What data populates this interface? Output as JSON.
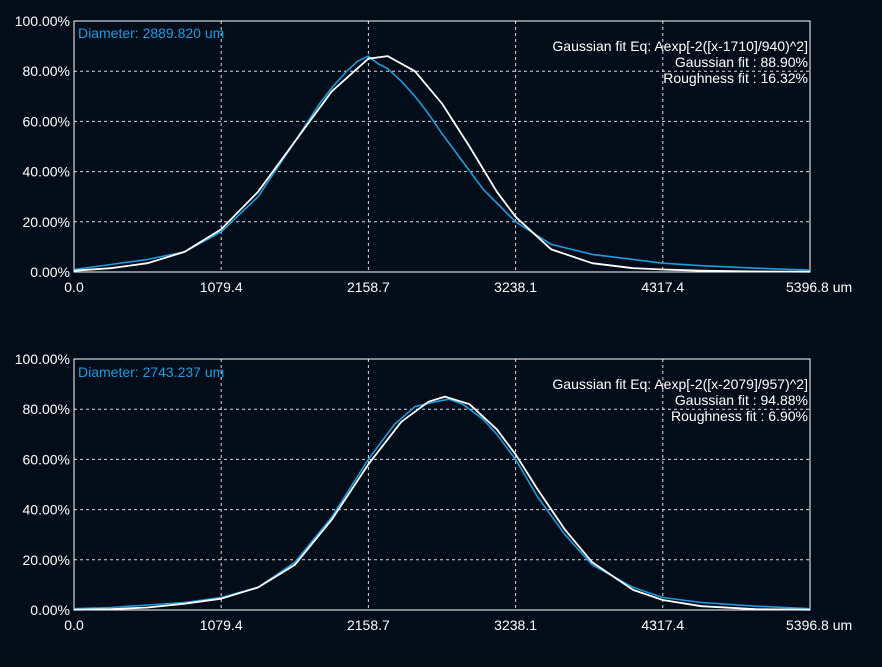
{
  "colors": {
    "background": "#030d1a",
    "plot_border": "#ffffff",
    "grid": "#ffffff",
    "measured": "#1b9be0",
    "fit": "#ffffff"
  },
  "chart_data": [
    {
      "type": "line",
      "diameter_label": "Diameter: 2889.820 um",
      "fit_equation": "Gaussian fit Eq: Aexp[-2([x-1710]/940)^2]",
      "gaussian_fit": "Gaussian fit : 88.90%",
      "roughness_fit": "Roughness fit : 16.32%",
      "x_ticks": [
        "0.0",
        "1079.4",
        "2158.7",
        "3238.1",
        "4317.4",
        "5396.8 um"
      ],
      "y_ticks": [
        "0.00%",
        "20.00%",
        "40.00%",
        "60.00%",
        "80.00%",
        "100.00%"
      ],
      "xlim": [
        0,
        5396.8
      ],
      "ylim": [
        0,
        100
      ],
      "grid": true,
      "series": [
        {
          "x": [
            0,
            270,
            540,
            810,
            1079,
            1350,
            1620,
            1800,
            1900,
            2000,
            2080,
            2158,
            2230,
            2300,
            2400,
            2500,
            2600,
            2700,
            2850,
            3000,
            3238,
            3500,
            3800,
            4100,
            4317,
            4600,
            5000,
            5397
          ],
          "y": [
            1,
            3,
            5,
            8,
            16,
            30,
            52,
            67,
            74,
            80,
            84,
            86,
            83,
            81,
            76,
            70,
            63,
            55,
            44,
            33,
            20,
            11,
            7,
            5,
            3.5,
            2.5,
            1.5,
            0.8
          ]
        },
        {
          "x": [
            0,
            270,
            540,
            810,
            1079,
            1350,
            1620,
            1890,
            2158,
            2300,
            2500,
            2700,
            2900,
            3100,
            3238,
            3500,
            3800,
            4100,
            4317,
            4600,
            5000,
            5397
          ],
          "y": [
            0.5,
            1.5,
            3.5,
            8,
            17,
            32,
            52,
            72,
            85,
            86,
            80,
            67,
            50,
            32,
            22,
            9,
            3.5,
            1.5,
            1,
            0.5,
            0.2,
            0.1
          ]
        }
      ]
    },
    {
      "type": "line",
      "diameter_label": "Diameter: 2743.237 um",
      "fit_equation": "Gaussian fit Eq: Aexp[-2([x-2079]/957)^2]",
      "gaussian_fit": "Gaussian fit : 94.88%",
      "roughness_fit": "Roughness fit : 6.90%",
      "x_ticks": [
        "0.0",
        "1079.4",
        "2158.7",
        "3238.1",
        "4317.4",
        "5396.8 um"
      ],
      "y_ticks": [
        "0.00%",
        "20.00%",
        "40.00%",
        "60.00%",
        "80.00%",
        "100.00%"
      ],
      "xlim": [
        0,
        5396.8
      ],
      "ylim": [
        0,
        100
      ],
      "grid": true,
      "series": [
        {
          "x": [
            0,
            270,
            540,
            810,
            1079,
            1350,
            1620,
            1890,
            2158,
            2350,
            2500,
            2650,
            2750,
            2850,
            3000,
            3100,
            3238,
            3400,
            3600,
            3800,
            4100,
            4317,
            4600,
            5000,
            5397
          ],
          "y": [
            0.5,
            1,
            2,
            3,
            5,
            9,
            19,
            37,
            60,
            74,
            81,
            83,
            84,
            82,
            76,
            70,
            60,
            45,
            30,
            18,
            9,
            5,
            3,
            1.5,
            0.5
          ]
        },
        {
          "x": [
            0,
            270,
            540,
            810,
            1079,
            1350,
            1620,
            1890,
            2158,
            2400,
            2600,
            2720,
            2900,
            3100,
            3238,
            3400,
            3600,
            3800,
            4100,
            4317,
            4600,
            5000,
            5397
          ],
          "y": [
            0.1,
            0.3,
            1,
            2.5,
            4.5,
            9,
            18,
            36,
            58,
            75,
            83,
            85,
            82,
            72,
            62,
            48,
            32,
            19,
            8,
            4,
            1.5,
            0.3,
            0.1
          ]
        }
      ]
    }
  ]
}
